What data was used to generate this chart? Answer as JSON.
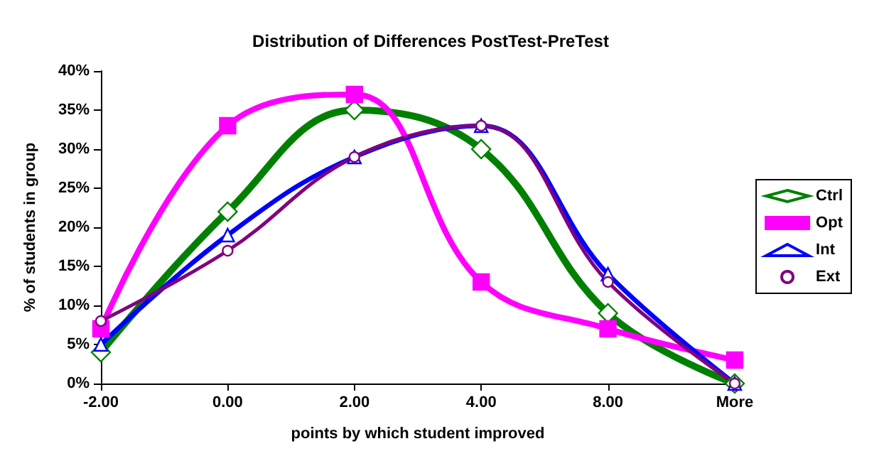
{
  "chart_data": {
    "type": "line",
    "title": "Distribution of Differences PostTest-PreTest",
    "xlabel": "points by which student improved",
    "ylabel": "% of students in group",
    "categories": [
      "-2.00",
      "0.00",
      "2.00",
      "4.00",
      "8.00",
      "More"
    ],
    "series": [
      {
        "name": "Ctrl",
        "color": "#008000",
        "marker": "diamond",
        "values": [
          4,
          22,
          35,
          30,
          9,
          0
        ]
      },
      {
        "name": "Opt",
        "color": "#ff00ff",
        "marker": "square",
        "values": [
          7,
          33,
          37,
          13,
          7,
          3
        ]
      },
      {
        "name": "Int",
        "color": "#0000ff",
        "marker": "triangle",
        "values": [
          5,
          19,
          29,
          33,
          14,
          0
        ]
      },
      {
        "name": "Ext",
        "color": "#800080",
        "marker": "circle",
        "values": [
          8,
          17,
          29,
          33,
          13,
          0
        ]
      }
    ],
    "ylim": [
      0,
      40
    ],
    "yticks": [
      {
        "value": 0,
        "label": "0%"
      },
      {
        "value": 5,
        "label": "5%"
      },
      {
        "value": 10,
        "label": "10%"
      },
      {
        "value": 15,
        "label": "15%"
      },
      {
        "value": 20,
        "label": "20%"
      },
      {
        "value": 25,
        "label": "25%"
      },
      {
        "value": 30,
        "label": "30%"
      },
      {
        "value": 35,
        "label": "35%"
      },
      {
        "value": 40,
        "label": "40%"
      }
    ],
    "grid": false,
    "legend": "right",
    "line_style": "solid"
  }
}
